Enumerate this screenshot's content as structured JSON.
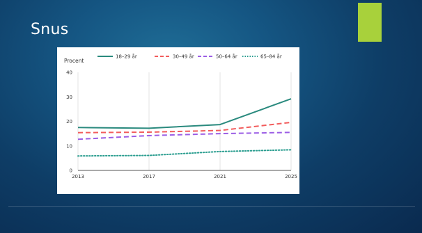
{
  "slide": {
    "title": "Snus",
    "accent_color": "#a8d13b"
  },
  "chart_data": {
    "type": "line",
    "ylabel": "Procent",
    "xlabel": "",
    "x": [
      2013,
      2017,
      2021,
      2025
    ],
    "x_ticks": [
      "2013",
      "2017",
      "2021",
      "2025"
    ],
    "ylim": [
      0,
      40
    ],
    "y_ticks": [
      "0",
      "10",
      "20",
      "30",
      "40"
    ],
    "grid": "vertical",
    "legend_placement": "top",
    "series": [
      {
        "name": "18–29 år",
        "color": "#2a8a7e",
        "dash": "solid",
        "x": [
          2013,
          2017,
          2021,
          2025
        ],
        "values": [
          17.5,
          17.2,
          18.7,
          29.2
        ]
      },
      {
        "name": "30–49 år",
        "color": "#f25c5c",
        "dash": "dashed",
        "x": [
          2013,
          2017,
          2021,
          2025
        ],
        "values": [
          15.4,
          15.6,
          16.3,
          19.6
        ]
      },
      {
        "name": "50–64 år",
        "color": "#9b5de5",
        "dash": "dashed",
        "x": [
          2013,
          2017,
          2021,
          2025
        ],
        "values": [
          12.7,
          14.2,
          15.0,
          15.5
        ]
      },
      {
        "name": "65–84 år",
        "color": "#2a9d8f",
        "dash": "dotted",
        "x": [
          2013,
          2017,
          2021,
          2025
        ],
        "values": [
          5.9,
          6.1,
          7.7,
          8.4
        ]
      }
    ]
  }
}
